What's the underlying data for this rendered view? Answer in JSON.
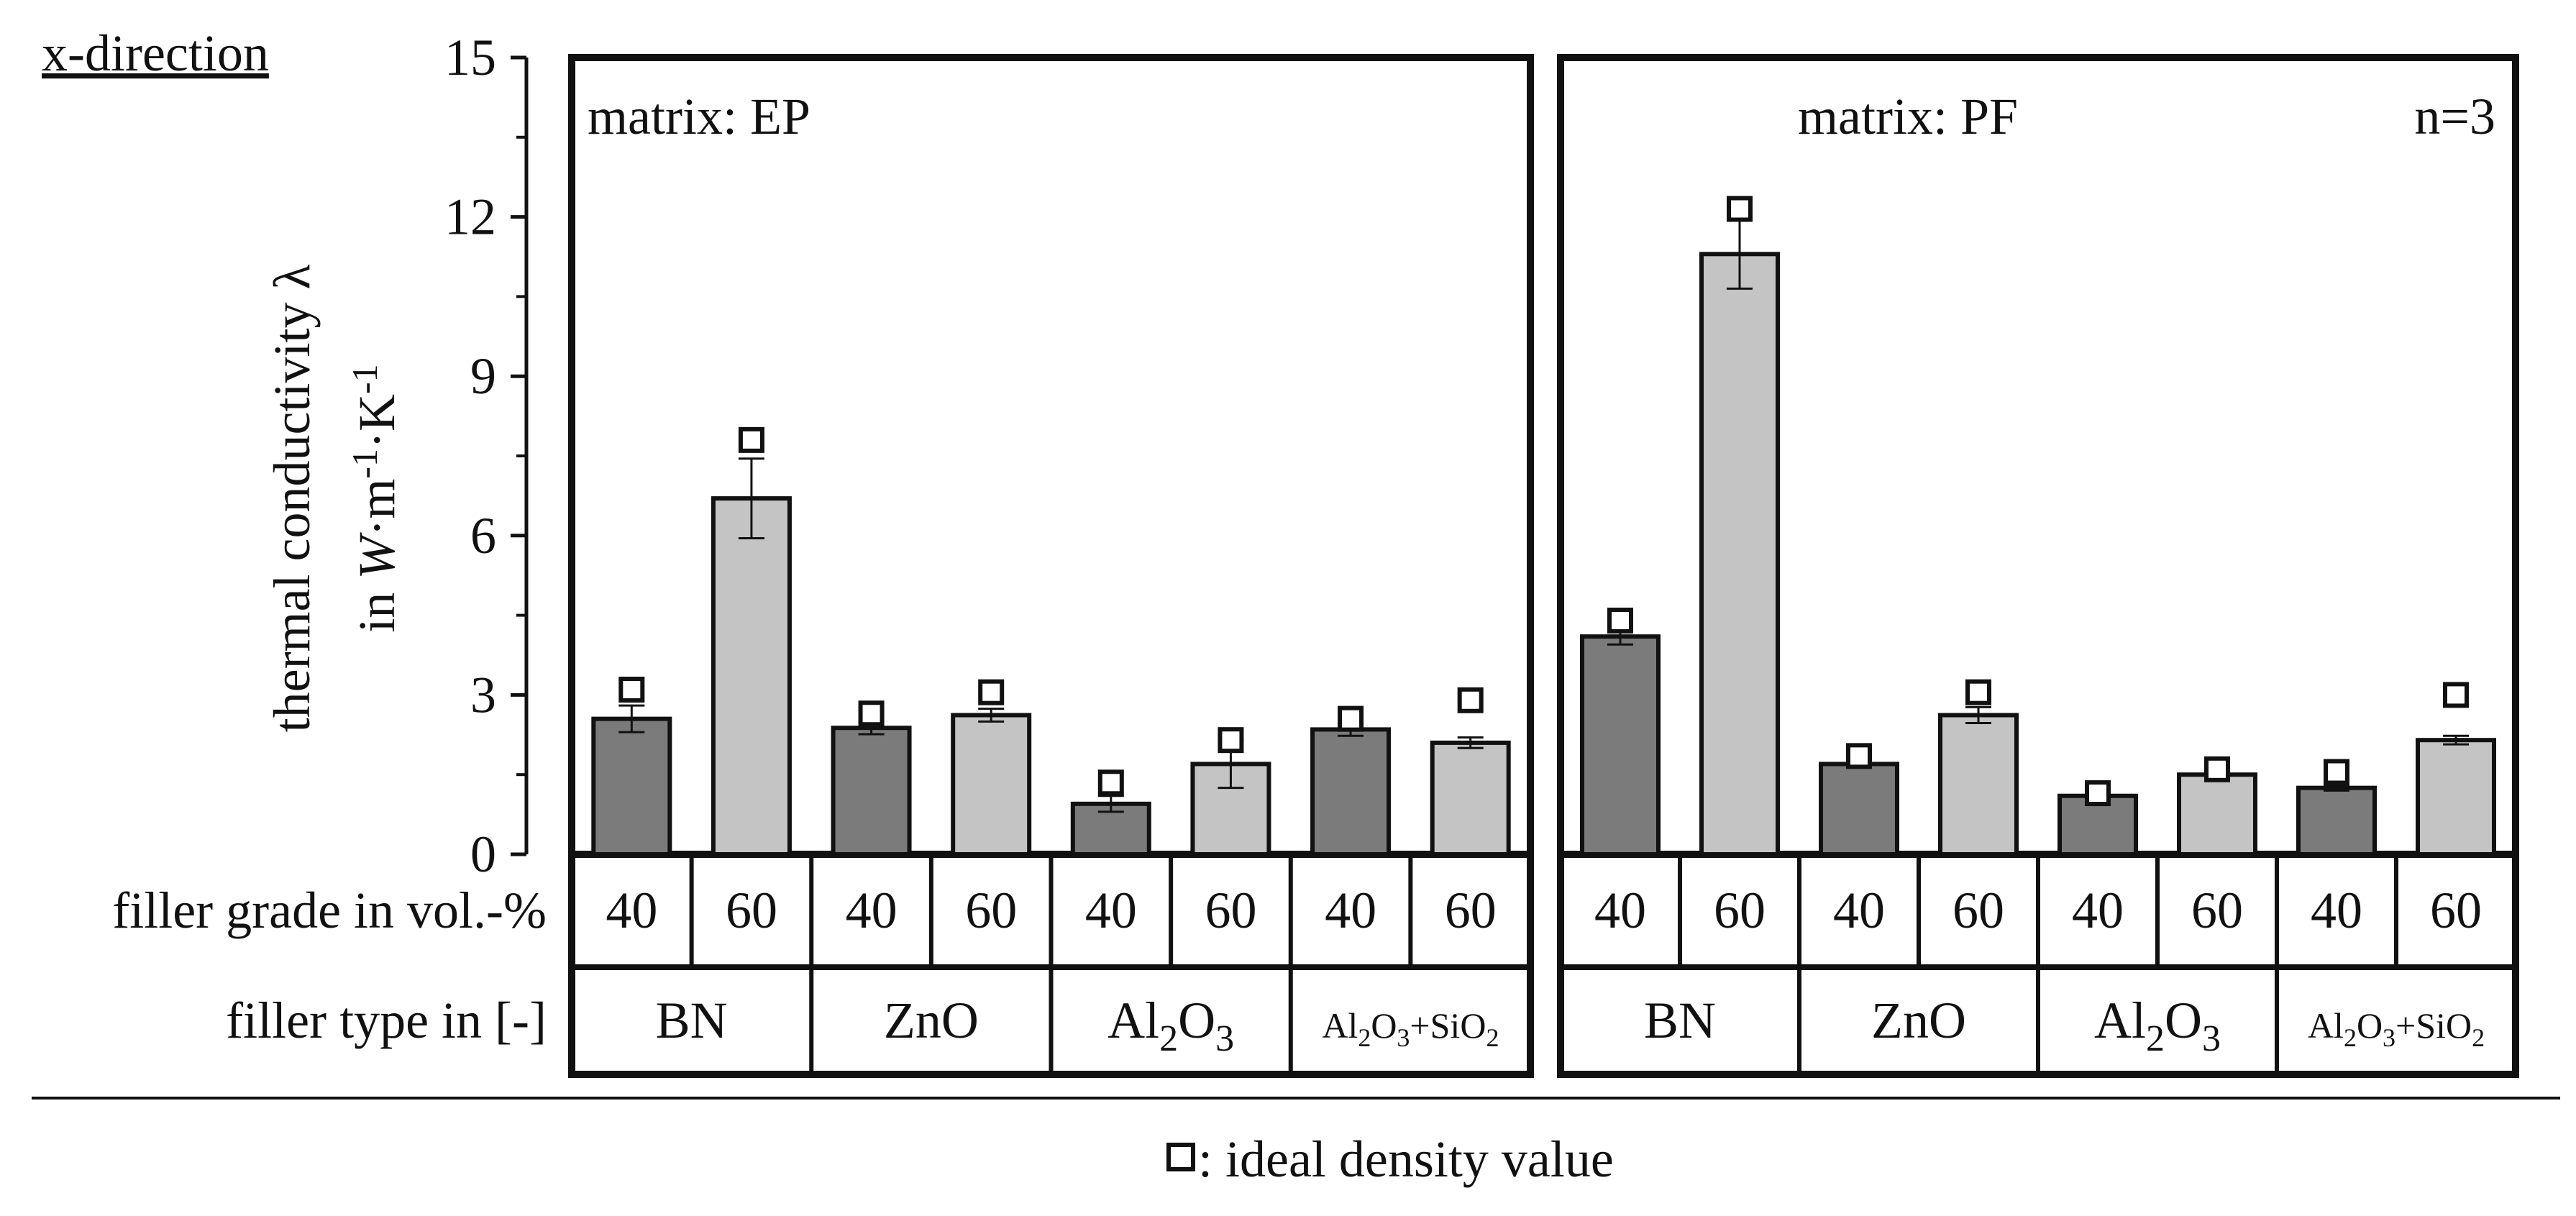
{
  "chart_data": {
    "type": "bar",
    "direction_label": "x-direction",
    "ylabel_line1": "thermal conductivity λ",
    "ylabel_line2": "in W·m⁻¹·K⁻¹",
    "ylim": [
      0,
      15
    ],
    "yticks": [
      0,
      3,
      6,
      9,
      12,
      15
    ],
    "sample_size": "n=3",
    "row_label_grade": "filler grade in vol.-%",
    "row_label_type": "filler type in [-]",
    "legend": "□: ideal density value",
    "colors": {
      "grade_40": "#7b7b7b",
      "grade_60": "#c4c4c4",
      "marker": "#ffffff",
      "frame": "#111111"
    },
    "panels": [
      {
        "matrix": "matrix: EP",
        "groups": [
          {
            "filler": "BN",
            "bars": [
              {
                "grade": "40",
                "value": 2.55,
                "error": 0.25,
                "ideal": 3.1
              },
              {
                "grade": "60",
                "value": 6.7,
                "error": 0.75,
                "ideal": 7.8
              }
            ]
          },
          {
            "filler": "ZnO",
            "bars": [
              {
                "grade": "40",
                "value": 2.38,
                "error": 0.12,
                "ideal": 2.65
              },
              {
                "grade": "60",
                "value": 2.62,
                "error": 0.12,
                "ideal": 3.05
              }
            ]
          },
          {
            "filler": "Al₂O₃",
            "bars": [
              {
                "grade": "40",
                "value": 0.95,
                "error": 0.15,
                "ideal": 1.35
              },
              {
                "grade": "60",
                "value": 1.7,
                "error": 0.45,
                "ideal": 2.15
              }
            ]
          },
          {
            "filler": "Al₂O₃+SiO₂",
            "bars": [
              {
                "grade": "40",
                "value": 2.35,
                "error": 0.12,
                "ideal": 2.55
              },
              {
                "grade": "60",
                "value": 2.1,
                "error": 0.1,
                "ideal": 2.9
              }
            ]
          }
        ]
      },
      {
        "matrix": "matrix: PF",
        "groups": [
          {
            "filler": "BN",
            "bars": [
              {
                "grade": "40",
                "value": 4.1,
                "error": 0.15,
                "ideal": 4.4
              },
              {
                "grade": "60",
                "value": 11.3,
                "error": 0.65,
                "ideal": 12.15
              }
            ]
          },
          {
            "filler": "ZnO",
            "bars": [
              {
                "grade": "40",
                "value": 1.7,
                "error": 0.05,
                "ideal": 1.85
              },
              {
                "grade": "60",
                "value": 2.62,
                "error": 0.15,
                "ideal": 3.05
              }
            ]
          },
          {
            "filler": "Al₂O₃",
            "bars": [
              {
                "grade": "40",
                "value": 1.1,
                "error": 0.05,
                "ideal": 1.15
              },
              {
                "grade": "60",
                "value": 1.5,
                "error": 0.05,
                "ideal": 1.6
              }
            ]
          },
          {
            "filler": "Al₂O₃+SiO₂",
            "bars": [
              {
                "grade": "40",
                "value": 1.25,
                "error": 0.05,
                "ideal": 1.55
              },
              {
                "grade": "60",
                "value": 2.15,
                "error": 0.08,
                "ideal": 3.0
              }
            ]
          }
        ]
      }
    ]
  }
}
